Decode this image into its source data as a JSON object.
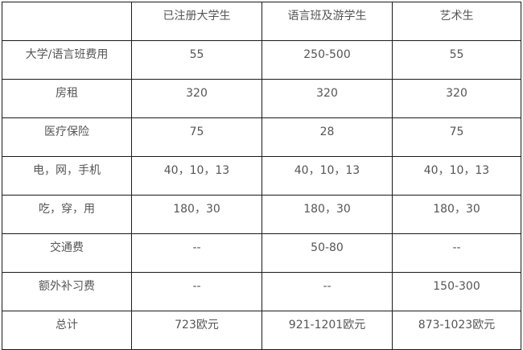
{
  "table": {
    "headers": [
      "",
      "已注册大学生",
      "语言班及游学生",
      "艺术生"
    ],
    "rows": [
      [
        "大学/语言班费用",
        "55",
        "250-500",
        "55"
      ],
      [
        "房租",
        "320",
        "320",
        "320"
      ],
      [
        "医疗保险",
        "75",
        "28",
        "75"
      ],
      [
        "电，网，手机",
        "40，10，13",
        "40，10，13",
        "40，10，13"
      ],
      [
        "吃，穿，用",
        "180，30",
        "180，30",
        "180，30"
      ],
      [
        "交通费",
        "--",
        "50-80",
        "--"
      ],
      [
        "额外补习费",
        "--",
        "--",
        "150-300"
      ],
      [
        "总计",
        "723欧元",
        "921-1201欧元",
        "873-1023欧元"
      ]
    ]
  }
}
